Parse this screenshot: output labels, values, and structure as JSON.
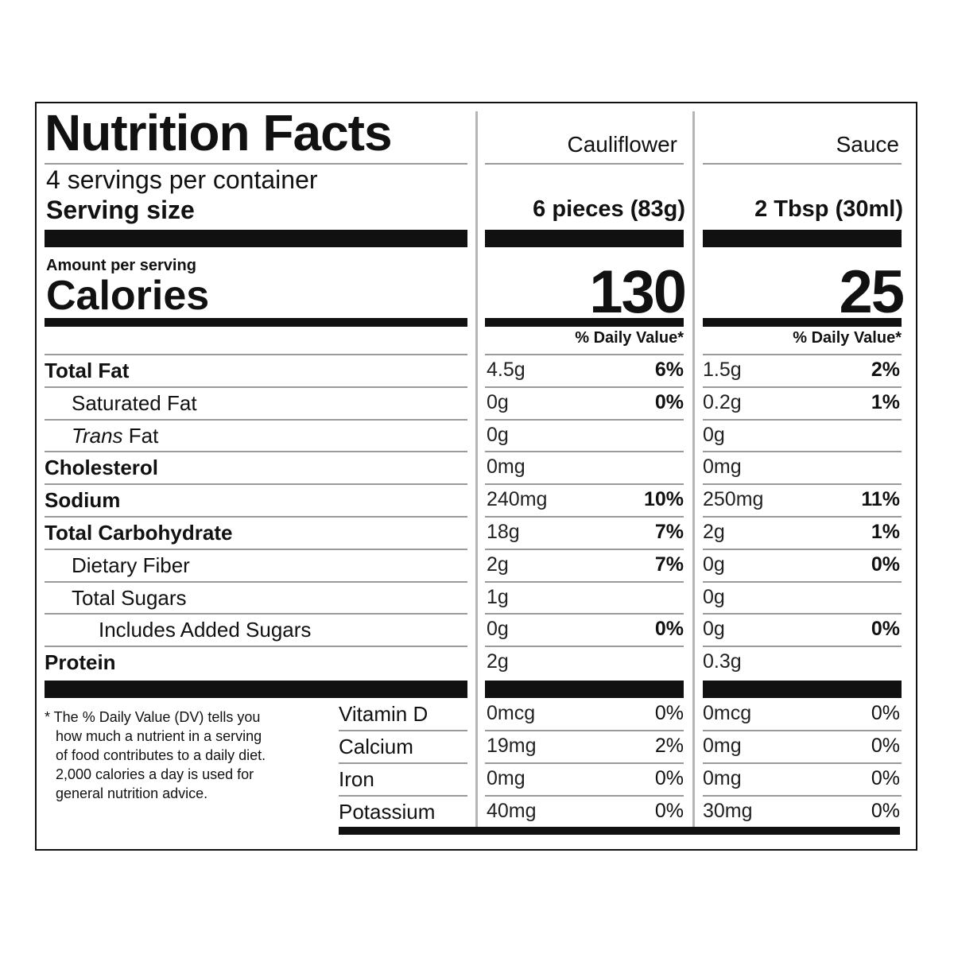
{
  "title": "Nutrition Facts",
  "servings_per_container": "4 servings per container",
  "serving_size_label": "Serving size",
  "amount_per_serving": "Amount per serving",
  "calories_label": "Calories",
  "columns": [
    {
      "name": "Cauliflower",
      "serving_size": "6 pieces (83g)",
      "calories": "130",
      "dv_header": "% Daily Value*"
    },
    {
      "name": "Sauce",
      "serving_size": "2 Tbsp (30ml)",
      "calories": "25",
      "dv_header": "% Daily Value*"
    }
  ],
  "nutrients": [
    {
      "name": "Total Fat",
      "style": "bold",
      "values": [
        {
          "amount": "4.5g",
          "dv": "6%"
        },
        {
          "amount": "1.5g",
          "dv": "2%"
        }
      ]
    },
    {
      "name": "Saturated Fat",
      "style": "indent",
      "values": [
        {
          "amount": "0g",
          "dv": "0%"
        },
        {
          "amount": "0.2g",
          "dv": "1%"
        }
      ]
    },
    {
      "name_italic": "Trans",
      "name_rest": " Fat",
      "style": "indent",
      "values": [
        {
          "amount": "0g",
          "dv": ""
        },
        {
          "amount": "0g",
          "dv": ""
        }
      ]
    },
    {
      "name": "Cholesterol",
      "style": "bold",
      "values": [
        {
          "amount": "0mg",
          "dv": ""
        },
        {
          "amount": "0mg",
          "dv": ""
        }
      ]
    },
    {
      "name": "Sodium",
      "style": "bold",
      "values": [
        {
          "amount": "240mg",
          "dv": "10%"
        },
        {
          "amount": "250mg",
          "dv": "11%"
        }
      ]
    },
    {
      "name": "Total Carbohydrate",
      "style": "bold",
      "values": [
        {
          "amount": "18g",
          "dv": "7%"
        },
        {
          "amount": "2g",
          "dv": "1%"
        }
      ]
    },
    {
      "name": "Dietary Fiber",
      "style": "indent",
      "values": [
        {
          "amount": "2g",
          "dv": "7%"
        },
        {
          "amount": "0g",
          "dv": "0%"
        }
      ]
    },
    {
      "name": "Total Sugars",
      "style": "indent",
      "values": [
        {
          "amount": "1g",
          "dv": ""
        },
        {
          "amount": "0g",
          "dv": ""
        }
      ]
    },
    {
      "name": "Includes Added Sugars",
      "style": "indent2",
      "values": [
        {
          "amount": "0g",
          "dv": "0%"
        },
        {
          "amount": "0g",
          "dv": "0%"
        }
      ]
    },
    {
      "name": "Protein",
      "style": "bold",
      "values": [
        {
          "amount": "2g",
          "dv": ""
        },
        {
          "amount": "0.3g",
          "dv": ""
        }
      ]
    }
  ],
  "vitamins": [
    {
      "name": "Vitamin D",
      "values": [
        {
          "amount": "0mcg",
          "dv": "0%"
        },
        {
          "amount": "0mcg",
          "dv": "0%"
        }
      ]
    },
    {
      "name": "Calcium",
      "values": [
        {
          "amount": "19mg",
          "dv": "2%"
        },
        {
          "amount": "0mg",
          "dv": "0%"
        }
      ]
    },
    {
      "name": "Iron",
      "values": [
        {
          "amount": "0mg",
          "dv": "0%"
        },
        {
          "amount": "0mg",
          "dv": "0%"
        }
      ]
    },
    {
      "name": "Potassium",
      "values": [
        {
          "amount": "40mg",
          "dv": "0%"
        },
        {
          "amount": "30mg",
          "dv": "0%"
        }
      ]
    }
  ],
  "footnote": [
    "* The % Daily Value (DV) tells you",
    "how much a nutrient in a serving",
    "of food contributes to a daily diet.",
    "2,000 calories a day is used for",
    "general nutrition advice."
  ]
}
